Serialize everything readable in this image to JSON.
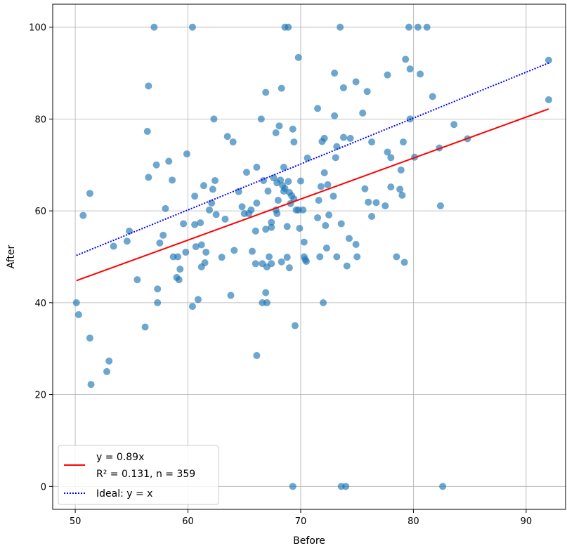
{
  "chart_data": {
    "type": "scatter",
    "xlabel": "Before",
    "ylabel": "After",
    "xlim": [
      48,
      93.5
    ],
    "ylim": [
      -5,
      105
    ],
    "xticks": [
      50,
      60,
      70,
      80,
      90
    ],
    "yticks": [
      0,
      20,
      40,
      60,
      80,
      100
    ],
    "grid": true,
    "legend_position": "lower-left",
    "point_color": "#1f77b4",
    "points": [
      [
        50.1,
        40
      ],
      [
        50.3,
        37.4
      ],
      [
        50.7,
        59
      ],
      [
        51.3,
        32.3
      ],
      [
        51.3,
        63.8
      ],
      [
        51.4,
        22.2
      ],
      [
        52.8,
        25
      ],
      [
        53.0,
        27.3
      ],
      [
        53.4,
        52.3
      ],
      [
        54.6,
        53.4
      ],
      [
        54.8,
        55.6
      ],
      [
        55.5,
        45
      ],
      [
        56.2,
        34.7
      ],
      [
        56.4,
        77.3
      ],
      [
        56.5,
        67.3
      ],
      [
        56.5,
        87.2
      ],
      [
        57.0,
        100
      ],
      [
        57.2,
        70
      ],
      [
        57.3,
        43
      ],
      [
        57.3,
        40
      ],
      [
        57.5,
        53
      ],
      [
        57.8,
        54.7
      ],
      [
        58.0,
        60.5
      ],
      [
        58.3,
        70.8
      ],
      [
        58.6,
        66.7
      ],
      [
        58.7,
        50
      ],
      [
        59.0,
        45.5
      ],
      [
        59.1,
        50
      ],
      [
        59.2,
        45
      ],
      [
        59.3,
        47.3
      ],
      [
        59.6,
        57.2
      ],
      [
        59.8,
        51
      ],
      [
        59.9,
        72.4
      ],
      [
        60.4,
        100
      ],
      [
        60.4,
        39.2
      ],
      [
        60.6,
        63.2
      ],
      [
        60.6,
        57
      ],
      [
        60.7,
        52.2
      ],
      [
        60.9,
        40.7
      ],
      [
        61.1,
        57.4
      ],
      [
        61.2,
        47.8
      ],
      [
        61.2,
        52.6
      ],
      [
        61.4,
        65.5
      ],
      [
        61.5,
        48.7
      ],
      [
        61.6,
        51
      ],
      [
        61.9,
        60.2
      ],
      [
        62.1,
        61.7
      ],
      [
        62.2,
        64.7
      ],
      [
        62.3,
        80
      ],
      [
        62.4,
        66.6
      ],
      [
        62.5,
        59.2
      ],
      [
        63.0,
        49.9
      ],
      [
        63.3,
        58.2
      ],
      [
        63.5,
        76.2
      ],
      [
        63.8,
        41.6
      ],
      [
        64.0,
        75
      ],
      [
        64.1,
        51.4
      ],
      [
        64.5,
        64.2
      ],
      [
        64.8,
        60.9
      ],
      [
        65.0,
        59.4
      ],
      [
        65.2,
        68.4
      ],
      [
        65.4,
        59.4
      ],
      [
        65.6,
        60.2
      ],
      [
        65.7,
        51.2
      ],
      [
        66.0,
        55.6
      ],
      [
        66.0,
        48.5
      ],
      [
        66.1,
        69.5
      ],
      [
        66.1,
        61.7
      ],
      [
        66.1,
        28.5
      ],
      [
        66.5,
        80
      ],
      [
        66.6,
        48.5
      ],
      [
        66.6,
        40
      ],
      [
        66.7,
        66.6
      ],
      [
        66.9,
        42.2
      ],
      [
        66.9,
        56
      ],
      [
        66.9,
        85.8
      ],
      [
        67.0,
        40
      ],
      [
        67.0,
        47.8
      ],
      [
        67.1,
        64.3
      ],
      [
        67.2,
        50
      ],
      [
        67.4,
        57.5
      ],
      [
        67.4,
        48.5
      ],
      [
        67.4,
        56.4
      ],
      [
        67.6,
        67.2
      ],
      [
        67.8,
        60.2
      ],
      [
        67.8,
        77
      ],
      [
        67.9,
        66.1
      ],
      [
        67.9,
        59.4
      ],
      [
        68.0,
        62.3
      ],
      [
        68.1,
        78.5
      ],
      [
        68.2,
        66.7
      ],
      [
        68.3,
        86.7
      ],
      [
        68.3,
        48.9
      ],
      [
        68.4,
        65.5
      ],
      [
        68.5,
        64.3
      ],
      [
        68.5,
        69.5
      ],
      [
        68.6,
        100
      ],
      [
        68.6,
        64.9
      ],
      [
        68.8,
        56.6
      ],
      [
        68.8,
        49.9
      ],
      [
        68.9,
        100
      ],
      [
        68.9,
        66.4
      ],
      [
        69.0,
        64
      ],
      [
        69.0,
        47.6
      ],
      [
        69.1,
        61.6
      ],
      [
        69.2,
        63.3
      ],
      [
        69.3,
        0
      ],
      [
        69.3,
        77.8
      ],
      [
        69.4,
        75
      ],
      [
        69.4,
        62.6
      ],
      [
        69.5,
        35
      ],
      [
        69.6,
        60.2
      ],
      [
        69.8,
        60.2
      ],
      [
        69.8,
        93.4
      ],
      [
        69.9,
        56.2
      ],
      [
        70.0,
        66.5
      ],
      [
        70.2,
        60.2
      ],
      [
        70.3,
        53.2
      ],
      [
        70.3,
        50
      ],
      [
        70.4,
        49.4
      ],
      [
        70.5,
        49
      ],
      [
        70.6,
        71.5
      ],
      [
        71.5,
        82.3
      ],
      [
        71.5,
        58.5
      ],
      [
        71.6,
        62.3
      ],
      [
        71.7,
        50
      ],
      [
        71.8,
        65.3
      ],
      [
        71.9,
        75.1
      ],
      [
        72.0,
        40
      ],
      [
        72.1,
        75.8
      ],
      [
        72.1,
        68.3
      ],
      [
        72.2,
        56.8
      ],
      [
        72.3,
        51.9
      ],
      [
        72.4,
        65.7
      ],
      [
        72.5,
        59.1
      ],
      [
        72.9,
        63.2
      ],
      [
        73.0,
        80.7
      ],
      [
        73.0,
        90
      ],
      [
        73.1,
        71.6
      ],
      [
        73.2,
        74
      ],
      [
        73.2,
        50
      ],
      [
        73.5,
        100
      ],
      [
        73.6,
        57.2
      ],
      [
        73.6,
        0
      ],
      [
        73.8,
        86.8
      ],
      [
        73.8,
        76
      ],
      [
        74.0,
        0
      ],
      [
        74.1,
        48
      ],
      [
        74.3,
        54
      ],
      [
        74.4,
        75.8
      ],
      [
        74.9,
        88.1
      ],
      [
        74.9,
        52.7
      ],
      [
        75.0,
        50
      ],
      [
        75.5,
        81.3
      ],
      [
        75.7,
        64.8
      ],
      [
        75.9,
        86
      ],
      [
        76.0,
        61.9
      ],
      [
        76.3,
        58.8
      ],
      [
        76.3,
        75
      ],
      [
        76.7,
        61.8
      ],
      [
        77.5,
        61.1
      ],
      [
        77.7,
        89.6
      ],
      [
        77.7,
        72.8
      ],
      [
        78.0,
        71.6
      ],
      [
        78.0,
        65.2
      ],
      [
        78.5,
        50
      ],
      [
        78.8,
        64.7
      ],
      [
        78.9,
        68.9
      ],
      [
        79.0,
        63.4
      ],
      [
        79.1,
        75
      ],
      [
        79.2,
        48.8
      ],
      [
        79.3,
        93
      ],
      [
        79.6,
        100
      ],
      [
        79.7,
        80
      ],
      [
        79.7,
        90.9
      ],
      [
        80.1,
        71.7
      ],
      [
        80.4,
        100
      ],
      [
        80.6,
        89.8
      ],
      [
        81.2,
        100
      ],
      [
        81.7,
        84.9
      ],
      [
        82.3,
        73.7
      ],
      [
        82.4,
        61.1
      ],
      [
        82.6,
        0
      ],
      [
        83.6,
        78.8
      ],
      [
        84.8,
        75.7
      ],
      [
        92.0,
        92.8
      ],
      [
        92.0,
        84.2
      ]
    ],
    "series": [
      {
        "kind": "line",
        "style": "solid",
        "color": "#ff0000",
        "x": [
          50.1,
          92.0
        ],
        "y": [
          44.8,
          82.2
        ]
      },
      {
        "kind": "line",
        "style": "dotted",
        "color": "#0000ff",
        "x": [
          50.1,
          92.0
        ],
        "y": [
          50.3,
          92.2
        ]
      }
    ],
    "legend": [
      {
        "lines": [
          "y = 0.89x",
          "R² = 0.131, n = 359"
        ],
        "style": "solid",
        "color": "#ff0000"
      },
      {
        "lines": [
          "Ideal: y = x"
        ],
        "style": "dotted",
        "color": "#0000ff"
      }
    ]
  }
}
